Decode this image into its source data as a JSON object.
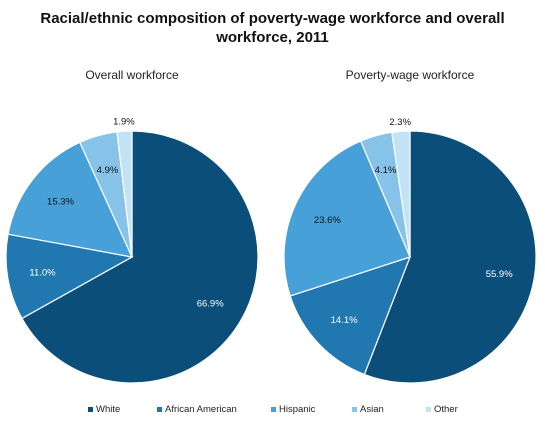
{
  "title_line1": "Racial/ethnic composition of poverty-wage workforce and overall",
  "title_line2": "workforce, 2011",
  "colors": {
    "White": "#0b4e7a",
    "African American": "#2178b0",
    "Hispanic": "#47a0d8",
    "Asian": "#87c3e9",
    "Other": "#c2e3f5"
  },
  "chart_data": [
    {
      "type": "pie",
      "title": "Overall workforce",
      "categories": [
        "White",
        "African American",
        "Hispanic",
        "Asian",
        "Other"
      ],
      "values": [
        66.9,
        11.0,
        15.3,
        4.9,
        1.9
      ],
      "labels": [
        "66.9%",
        "11.0%",
        "15.3%",
        "4.9%",
        "1.9%"
      ]
    },
    {
      "type": "pie",
      "title": "Poverty-wage workforce",
      "categories": [
        "White",
        "African American",
        "Hispanic",
        "Asian",
        "Other"
      ],
      "values": [
        55.9,
        14.1,
        23.6,
        4.1,
        2.3
      ],
      "labels": [
        "55.9%",
        "14.1%",
        "23.6%",
        "4.1%",
        "2.3%"
      ]
    }
  ],
  "legend": [
    "White",
    "African American",
    "Hispanic",
    "Asian",
    "Other"
  ]
}
